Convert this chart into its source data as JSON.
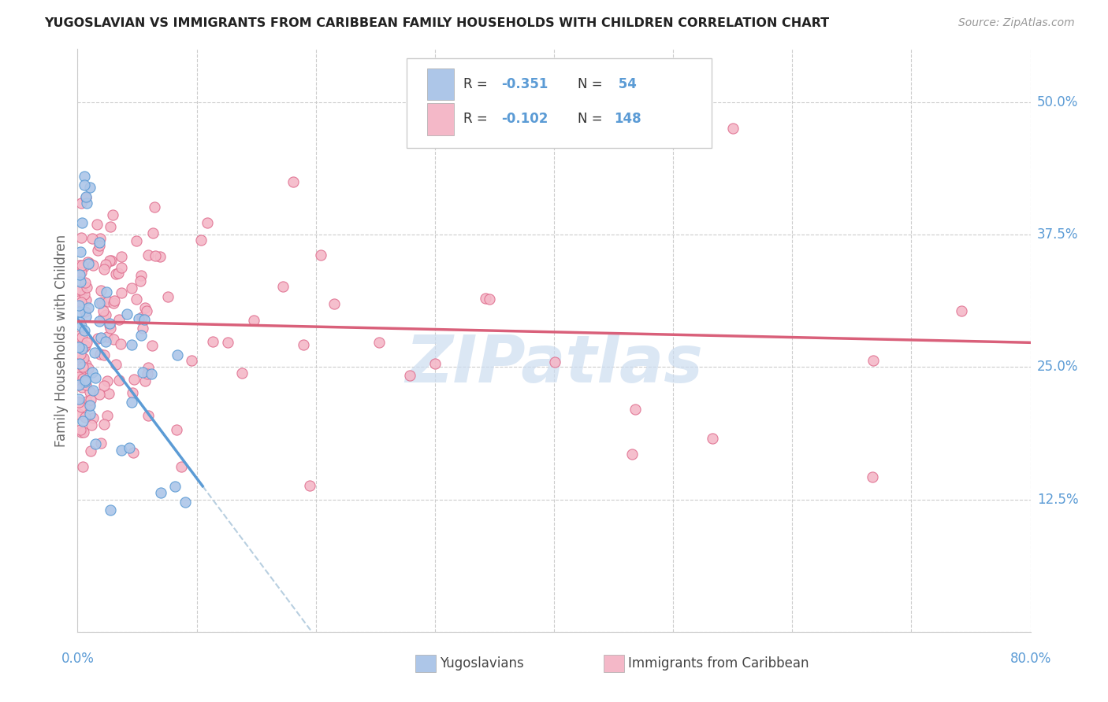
{
  "title": "YUGOSLAVIAN VS IMMIGRANTS FROM CARIBBEAN FAMILY HOUSEHOLDS WITH CHILDREN CORRELATION CHART",
  "source": "Source: ZipAtlas.com",
  "ylabel": "Family Households with Children",
  "xlim": [
    0.0,
    0.8
  ],
  "ylim": [
    0.0,
    0.55
  ],
  "ytick_vals": [
    0.0,
    0.125,
    0.25,
    0.375,
    0.5
  ],
  "ytick_labels": [
    "",
    "12.5%",
    "25.0%",
    "37.5%",
    "50.0%"
  ],
  "xtick_vals": [
    0.0,
    0.1,
    0.2,
    0.3,
    0.4,
    0.5,
    0.6,
    0.7,
    0.8
  ],
  "xtick_labels": [
    "0.0%",
    "",
    "",
    "",
    "",
    "",
    "",
    "",
    "80.0%"
  ],
  "blue_fill": "#adc6e8",
  "blue_edge": "#5b9bd5",
  "pink_fill": "#f4b8c8",
  "pink_edge": "#e07090",
  "blue_line": "#5b9bd5",
  "pink_line": "#d9607a",
  "dash_line": "#b8cfe0",
  "grid_color": "#cccccc",
  "watermark_color": "#ccddf0",
  "bg_color": "#ffffff",
  "legend_r1": "R = ",
  "legend_v1": "-0.351",
  "legend_n1_label": "N = ",
  "legend_n1_val": " 54",
  "legend_r2": "R = ",
  "legend_v2": "-0.102",
  "legend_n2_label": "N = ",
  "legend_n2_val": "148",
  "watermark": "ZIPatlas",
  "yug_seed": 101,
  "car_seed": 202
}
